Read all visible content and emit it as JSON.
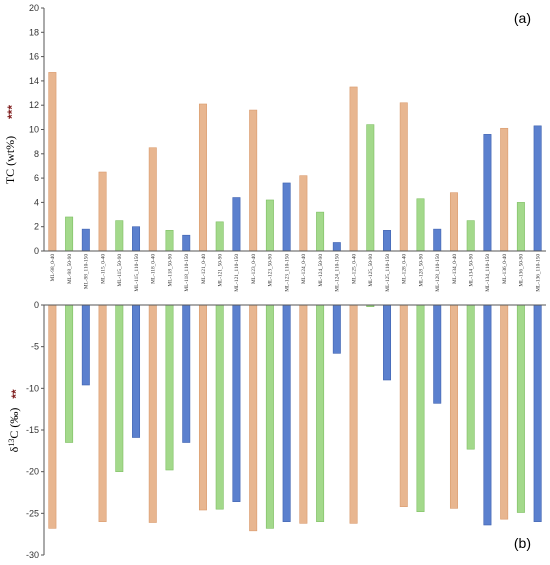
{
  "colors": {
    "depth_0_40": "#E8B690",
    "depth_50_90": "#A3D98B",
    "depth_110_150": "#5B80CE",
    "bar_stroke_0_40": "#D99A6C",
    "bar_stroke_50_90": "#7DBE62",
    "bar_stroke_110_150": "#3F62B0",
    "stars": "#7f1d1d"
  },
  "chart_data": [
    {
      "type": "bar",
      "panel_label": "(a)",
      "ylabel": "TC (wt%)",
      "ylabel_stars": "***",
      "ylim": [
        0,
        20
      ],
      "yticks": [
        0,
        2,
        4,
        6,
        8,
        10,
        12,
        14,
        16,
        18,
        20
      ],
      "grid": false,
      "categories": [
        "ML-98_0-40",
        "ML-98_50-90",
        "ML-98_110-150",
        "ML-115_0-40",
        "ML-115_50-90",
        "ML-115_110-150",
        "ML-118_0-40",
        "ML-118_50-90",
        "ML-118_110-150",
        "ML-121_0-40",
        "ML-121_50-90",
        "ML-121_110-150",
        "ML-123_0-40",
        "ML-123_50-90",
        "ML-123_110-150",
        "ML-124_0-40",
        "ML-124_50-90",
        "ML-124_110-150",
        "ML-125_0-40",
        "ML-125_50-90",
        "ML-125_110-150",
        "ML-128_0-40",
        "ML-128_50-90",
        "ML-128_110-150",
        "ML-134_0-40",
        "ML-134_50-90",
        "ML-134_110-150",
        "ML-136_0-40",
        "ML-136_50-90",
        "ML-136_110-150"
      ],
      "values": [
        14.7,
        2.8,
        1.8,
        6.5,
        2.5,
        2.0,
        8.5,
        1.7,
        1.3,
        12.1,
        2.4,
        4.4,
        11.6,
        4.2,
        5.6,
        6.2,
        3.2,
        0.7,
        13.5,
        10.4,
        1.7,
        12.2,
        4.3,
        1.8,
        4.8,
        2.5,
        9.6,
        10.1,
        4.0,
        10.3
      ]
    },
    {
      "type": "bar",
      "panel_label": "(b)",
      "ylabel": "δ13C (‰)",
      "ylabel_stars": "**",
      "ylim": [
        -30,
        0
      ],
      "yticks": [
        0,
        -5,
        -10,
        -15,
        -20,
        -25,
        -30
      ],
      "grid": false,
      "categories": [
        "ML-98_0-40",
        "ML-98_50-90",
        "ML-98_110-150",
        "ML-115_0-40",
        "ML-115_50-90",
        "ML-115_110-150",
        "ML-118_0-40",
        "ML-118_50-90",
        "ML-118_110-150",
        "ML-121_0-40",
        "ML-121_50-90",
        "ML-121_110-150",
        "ML-123_0-40",
        "ML-123_50-90",
        "ML-123_110-150",
        "ML-124_0-40",
        "ML-124_50-90",
        "ML-124_110-150",
        "ML-125_0-40",
        "ML-125_50-90",
        "ML-125_110-150",
        "ML-128_0-40",
        "ML-128_50-90",
        "ML-128_110-150",
        "ML-134_0-40",
        "ML-134_50-90",
        "ML-134_110-150",
        "ML-136_0-40",
        "ML-136_50-90",
        "ML-136_110-150"
      ],
      "values": [
        -26.8,
        -16.5,
        -9.6,
        -26.0,
        -20.0,
        -15.9,
        -26.1,
        -19.8,
        -16.5,
        -24.6,
        -24.5,
        -23.6,
        -27.1,
        -26.8,
        -26.0,
        -26.2,
        -26.0,
        -5.8,
        -26.2,
        -0.2,
        -9.0,
        -24.2,
        -24.8,
        -11.8,
        -24.4,
        -17.3,
        -26.4,
        -25.7,
        -24.9,
        -26.0
      ]
    }
  ]
}
